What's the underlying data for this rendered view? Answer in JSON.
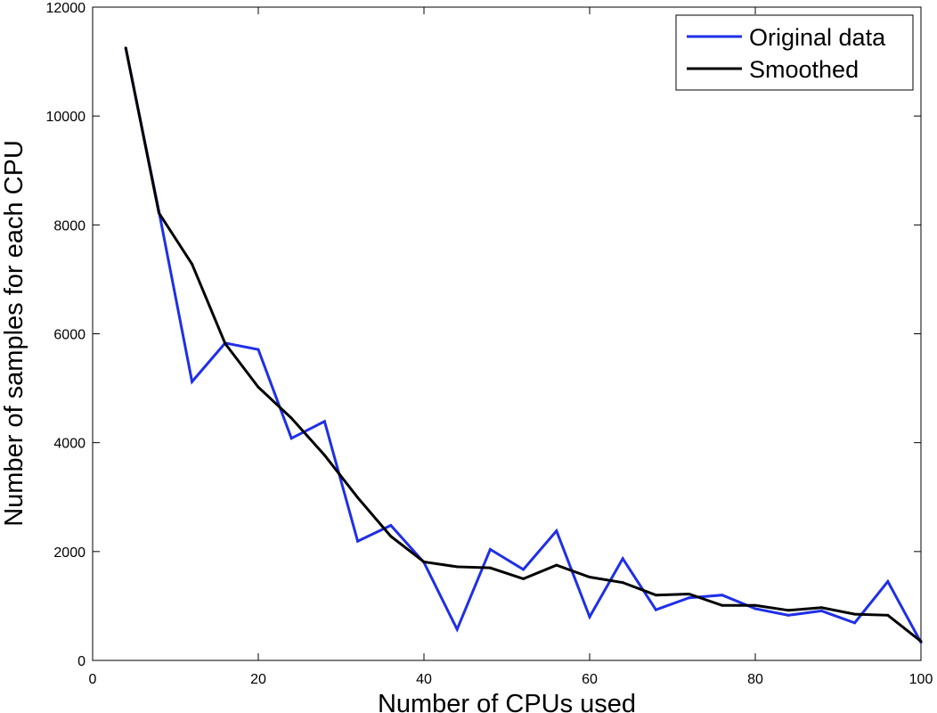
{
  "chart_data": {
    "type": "line",
    "xlabel": "Number of CPUs used",
    "ylabel": "Number of samples for each CPU",
    "xlim": [
      0,
      100
    ],
    "ylim": [
      0,
      12000
    ],
    "xticks": [
      0,
      20,
      40,
      60,
      80,
      100
    ],
    "yticks": [
      0,
      2000,
      4000,
      6000,
      8000,
      10000,
      12000
    ],
    "grid": false,
    "legend_position": "top-right",
    "x": [
      4,
      8,
      12,
      16,
      20,
      24,
      28,
      32,
      36,
      40,
      44,
      48,
      52,
      56,
      60,
      64,
      68,
      72,
      76,
      80,
      84,
      88,
      92,
      96,
      100
    ],
    "series": [
      {
        "name": "Original data",
        "color": "#1f2fe8",
        "values": [
          11250,
          8250,
          5120,
          5830,
          5710,
          4080,
          4390,
          2190,
          2480,
          1800,
          570,
          2040,
          1670,
          2380,
          800,
          1870,
          930,
          1150,
          1200,
          950,
          830,
          910,
          690,
          1450,
          330
        ]
      },
      {
        "name": "Smoothed",
        "color": "#000000",
        "values": [
          11250,
          8220,
          7280,
          5820,
          5020,
          4450,
          3770,
          2990,
          2280,
          1810,
          1720,
          1700,
          1500,
          1750,
          1530,
          1430,
          1200,
          1220,
          1010,
          1010,
          920,
          970,
          850,
          830,
          350
        ]
      }
    ]
  }
}
